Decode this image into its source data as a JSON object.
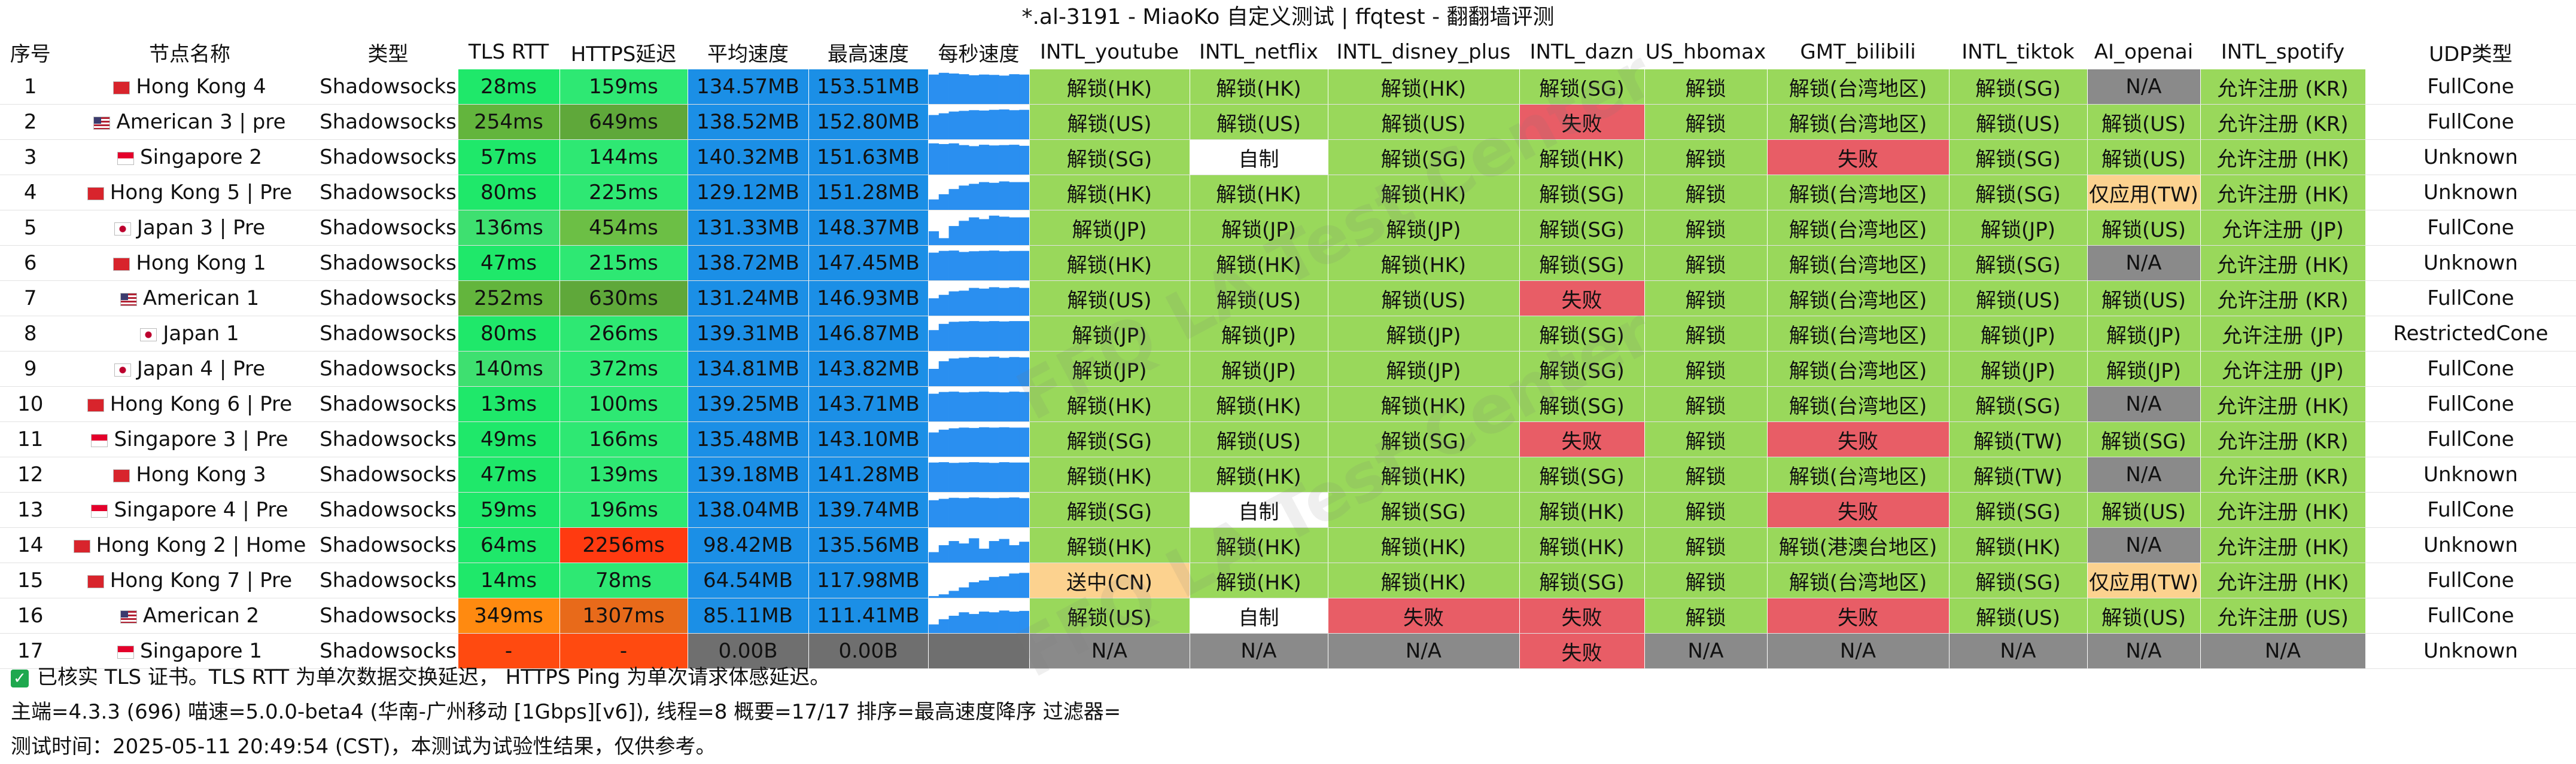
{
  "title": "*.al-3191 - MiaoKo 自定义测试 | ffqtest - 翻翻墙评测",
  "columns": [
    "序号",
    "节点名称",
    "类型",
    "TLS RTT",
    "HTTPS延迟",
    "平均速度",
    "最高速度",
    "每秒速度",
    "INTL_youtube",
    "INTL_netflix",
    "INTL_disney_plus",
    "INTL_dazn",
    "US_hbomax",
    "GMT_bilibili",
    "INTL_tiktok",
    "AI_openai",
    "INTL_spotify",
    "UDP类型"
  ],
  "watermark": "FFQ LA Test Center",
  "rows": [
    {
      "idx": "1",
      "flag": "hk",
      "name": "Hong Kong 4",
      "type": "Shadowsocks",
      "rtt": "28ms",
      "https": "159ms",
      "avg": "134.57MB",
      "max": "153.51MB",
      "youtube": "解锁(HK)",
      "netflix": "解锁(HK)",
      "disney": "解锁(HK)",
      "dazn": "解锁(SG)",
      "hbomax": "解锁",
      "bili": "解锁(台湾地区)",
      "tiktok": "解锁(SG)",
      "openai": "N/A",
      "spotify": "允许注册 (KR)",
      "udp": "FullCone"
    },
    {
      "idx": "2",
      "flag": "us",
      "name": "American 3 | pre",
      "type": "Shadowsocks",
      "rtt": "254ms",
      "https": "649ms",
      "avg": "138.52MB",
      "max": "152.80MB",
      "youtube": "解锁(US)",
      "netflix": "解锁(US)",
      "disney": "解锁(US)",
      "dazn": "失败",
      "hbomax": "解锁",
      "bili": "解锁(台湾地区)",
      "tiktok": "解锁(US)",
      "openai": "解锁(US)",
      "spotify": "允许注册 (KR)",
      "udp": "FullCone"
    },
    {
      "idx": "3",
      "flag": "sg",
      "name": "Singapore 2",
      "type": "Shadowsocks",
      "rtt": "57ms",
      "https": "144ms",
      "avg": "140.32MB",
      "max": "151.63MB",
      "youtube": "解锁(SG)",
      "netflix": "自制",
      "disney": "解锁(SG)",
      "dazn": "解锁(HK)",
      "hbomax": "解锁",
      "bili": "失败",
      "tiktok": "解锁(SG)",
      "openai": "解锁(US)",
      "spotify": "允许注册 (HK)",
      "udp": "Unknown"
    },
    {
      "idx": "4",
      "flag": "hk",
      "name": "Hong Kong 5 | Pre",
      "type": "Shadowsocks",
      "rtt": "80ms",
      "https": "225ms",
      "avg": "129.12MB",
      "max": "151.28MB",
      "youtube": "解锁(HK)",
      "netflix": "解锁(HK)",
      "disney": "解锁(HK)",
      "dazn": "解锁(SG)",
      "hbomax": "解锁",
      "bili": "解锁(台湾地区)",
      "tiktok": "解锁(SG)",
      "openai": "仅应用(TW)",
      "spotify": "允许注册 (HK)",
      "udp": "Unknown"
    },
    {
      "idx": "5",
      "flag": "jp",
      "name": "Japan 3 | Pre",
      "type": "Shadowsocks",
      "rtt": "136ms",
      "https": "454ms",
      "avg": "131.33MB",
      "max": "148.37MB",
      "youtube": "解锁(JP)",
      "netflix": "解锁(JP)",
      "disney": "解锁(JP)",
      "dazn": "解锁(SG)",
      "hbomax": "解锁",
      "bili": "解锁(台湾地区)",
      "tiktok": "解锁(JP)",
      "openai": "解锁(US)",
      "spotify": "允许注册 (JP)",
      "udp": "FullCone"
    },
    {
      "idx": "6",
      "flag": "hk",
      "name": "Hong Kong 1",
      "type": "Shadowsocks",
      "rtt": "47ms",
      "https": "215ms",
      "avg": "138.72MB",
      "max": "147.45MB",
      "youtube": "解锁(HK)",
      "netflix": "解锁(HK)",
      "disney": "解锁(HK)",
      "dazn": "解锁(SG)",
      "hbomax": "解锁",
      "bili": "解锁(台湾地区)",
      "tiktok": "解锁(SG)",
      "openai": "N/A",
      "spotify": "允许注册 (HK)",
      "udp": "Unknown"
    },
    {
      "idx": "7",
      "flag": "us",
      "name": "American 1",
      "type": "Shadowsocks",
      "rtt": "252ms",
      "https": "630ms",
      "avg": "131.24MB",
      "max": "146.93MB",
      "youtube": "解锁(US)",
      "netflix": "解锁(US)",
      "disney": "解锁(US)",
      "dazn": "失败",
      "hbomax": "解锁",
      "bili": "解锁(台湾地区)",
      "tiktok": "解锁(US)",
      "openai": "解锁(US)",
      "spotify": "允许注册 (KR)",
      "udp": "FullCone"
    },
    {
      "idx": "8",
      "flag": "jp",
      "name": "Japan 1",
      "type": "Shadowsocks",
      "rtt": "80ms",
      "https": "266ms",
      "avg": "139.31MB",
      "max": "146.87MB",
      "youtube": "解锁(JP)",
      "netflix": "解锁(JP)",
      "disney": "解锁(JP)",
      "dazn": "解锁(SG)",
      "hbomax": "解锁",
      "bili": "解锁(台湾地区)",
      "tiktok": "解锁(JP)",
      "openai": "解锁(JP)",
      "spotify": "允许注册 (JP)",
      "udp": "RestrictedCone"
    },
    {
      "idx": "9",
      "flag": "jp",
      "name": "Japan 4 | Pre",
      "type": "Shadowsocks",
      "rtt": "140ms",
      "https": "372ms",
      "avg": "134.81MB",
      "max": "143.82MB",
      "youtube": "解锁(JP)",
      "netflix": "解锁(JP)",
      "disney": "解锁(JP)",
      "dazn": "解锁(SG)",
      "hbomax": "解锁",
      "bili": "解锁(台湾地区)",
      "tiktok": "解锁(JP)",
      "openai": "解锁(JP)",
      "spotify": "允许注册 (JP)",
      "udp": "FullCone"
    },
    {
      "idx": "10",
      "flag": "hk",
      "name": "Hong Kong 6 | Pre",
      "type": "Shadowsocks",
      "rtt": "13ms",
      "https": "100ms",
      "avg": "139.25MB",
      "max": "143.71MB",
      "youtube": "解锁(HK)",
      "netflix": "解锁(HK)",
      "disney": "解锁(HK)",
      "dazn": "解锁(SG)",
      "hbomax": "解锁",
      "bili": "解锁(台湾地区)",
      "tiktok": "解锁(SG)",
      "openai": "N/A",
      "spotify": "允许注册 (HK)",
      "udp": "FullCone"
    },
    {
      "idx": "11",
      "flag": "sg",
      "name": "Singapore 3 | Pre",
      "type": "Shadowsocks",
      "rtt": "49ms",
      "https": "166ms",
      "avg": "135.48MB",
      "max": "143.10MB",
      "youtube": "解锁(SG)",
      "netflix": "解锁(US)",
      "disney": "解锁(SG)",
      "dazn": "失败",
      "hbomax": "解锁",
      "bili": "失败",
      "tiktok": "解锁(TW)",
      "openai": "解锁(SG)",
      "spotify": "允许注册 (KR)",
      "udp": "FullCone"
    },
    {
      "idx": "12",
      "flag": "hk",
      "name": "Hong Kong 3",
      "type": "Shadowsocks",
      "rtt": "47ms",
      "https": "139ms",
      "avg": "139.18MB",
      "max": "141.28MB",
      "youtube": "解锁(HK)",
      "netflix": "解锁(HK)",
      "disney": "解锁(HK)",
      "dazn": "解锁(SG)",
      "hbomax": "解锁",
      "bili": "解锁(台湾地区)",
      "tiktok": "解锁(TW)",
      "openai": "N/A",
      "spotify": "允许注册 (KR)",
      "udp": "Unknown"
    },
    {
      "idx": "13",
      "flag": "sg",
      "name": "Singapore 4 | Pre",
      "type": "Shadowsocks",
      "rtt": "59ms",
      "https": "196ms",
      "avg": "138.04MB",
      "max": "139.74MB",
      "youtube": "解锁(SG)",
      "netflix": "自制",
      "disney": "解锁(SG)",
      "dazn": "解锁(HK)",
      "hbomax": "解锁",
      "bili": "失败",
      "tiktok": "解锁(SG)",
      "openai": "解锁(US)",
      "spotify": "允许注册 (HK)",
      "udp": "FullCone"
    },
    {
      "idx": "14",
      "flag": "hk",
      "name": "Hong Kong 2 | Home",
      "type": "Shadowsocks",
      "rtt": "64ms",
      "https": "2256ms",
      "avg": "98.42MB",
      "max": "135.56MB",
      "youtube": "解锁(HK)",
      "netflix": "解锁(HK)",
      "disney": "解锁(HK)",
      "dazn": "解锁(HK)",
      "hbomax": "解锁",
      "bili": "解锁(港澳台地区)",
      "tiktok": "解锁(HK)",
      "openai": "N/A",
      "spotify": "允许注册 (HK)",
      "udp": "Unknown"
    },
    {
      "idx": "15",
      "flag": "hk",
      "name": "Hong Kong 7 | Pre",
      "type": "Shadowsocks",
      "rtt": "14ms",
      "https": "78ms",
      "avg": "64.54MB",
      "max": "117.98MB",
      "youtube": "送中(CN)",
      "netflix": "解锁(HK)",
      "disney": "解锁(HK)",
      "dazn": "解锁(SG)",
      "hbomax": "解锁",
      "bili": "解锁(台湾地区)",
      "tiktok": "解锁(SG)",
      "openai": "仅应用(TW)",
      "spotify": "允许注册 (HK)",
      "udp": "FullCone"
    },
    {
      "idx": "16",
      "flag": "us",
      "name": "American 2",
      "type": "Shadowsocks",
      "rtt": "349ms",
      "https": "1307ms",
      "avg": "85.11MB",
      "max": "111.41MB",
      "youtube": "解锁(US)",
      "netflix": "自制",
      "disney": "失败",
      "dazn": "失败",
      "hbomax": "解锁",
      "bili": "失败",
      "tiktok": "解锁(US)",
      "openai": "解锁(US)",
      "spotify": "允许注册 (US)",
      "udp": "FullCone"
    },
    {
      "idx": "17",
      "flag": "sg",
      "name": "Singapore 1",
      "type": "Shadowsocks",
      "rtt": "-",
      "https": "-",
      "avg": "0.00B",
      "max": "0.00B",
      "youtube": "N/A",
      "netflix": "N/A",
      "disney": "N/A",
      "dazn": "失败",
      "hbomax": "N/A",
      "bili": "N/A",
      "tiktok": "N/A",
      "openai": "N/A",
      "spotify": "N/A",
      "udp": "Unknown"
    }
  ],
  "speed_bars": [
    [
      0.85,
      0.9,
      0.88,
      0.86,
      0.83,
      0.85,
      0.84,
      0.82,
      0.86,
      0.85
    ],
    [
      0.7,
      0.75,
      0.8,
      0.82,
      0.84,
      0.83,
      0.85,
      0.86,
      0.84,
      0.85
    ],
    [
      0.9,
      0.88,
      0.9,
      0.85,
      0.82,
      0.86,
      0.84,
      0.85,
      0.86,
      0.83
    ],
    [
      0.3,
      0.45,
      0.6,
      0.7,
      0.75,
      0.8,
      0.78,
      0.82,
      0.8,
      0.8
    ],
    [
      0.4,
      0.2,
      0.55,
      0.7,
      0.8,
      0.75,
      0.85,
      0.82,
      0.8,
      0.8
    ],
    [
      0.8,
      0.85,
      0.86,
      0.82,
      0.84,
      0.85,
      0.86,
      0.84,
      0.85,
      0.85
    ],
    [
      0.5,
      0.6,
      0.7,
      0.72,
      0.8,
      0.78,
      0.82,
      0.8,
      0.82,
      0.8
    ],
    [
      0.6,
      0.78,
      0.84,
      0.85,
      0.86,
      0.85,
      0.86,
      0.85,
      0.86,
      0.86
    ],
    [
      0.5,
      0.72,
      0.8,
      0.82,
      0.84,
      0.83,
      0.85,
      0.82,
      0.84,
      0.83
    ],
    [
      0.8,
      0.85,
      0.86,
      0.84,
      0.85,
      0.86,
      0.85,
      0.84,
      0.86,
      0.85
    ],
    [
      0.7,
      0.78,
      0.82,
      0.84,
      0.83,
      0.85,
      0.84,
      0.85,
      0.84,
      0.84
    ],
    [
      0.85,
      0.86,
      0.84,
      0.85,
      0.86,
      0.85,
      0.84,
      0.86,
      0.85,
      0.85
    ],
    [
      0.78,
      0.82,
      0.85,
      0.84,
      0.86,
      0.85,
      0.84,
      0.85,
      0.86,
      0.84
    ],
    [
      0.3,
      0.5,
      0.62,
      0.55,
      0.7,
      0.4,
      0.62,
      0.68,
      0.5,
      0.6
    ],
    [
      0.05,
      0.1,
      0.2,
      0.3,
      0.45,
      0.5,
      0.6,
      0.62,
      0.7,
      0.72
    ],
    [
      0.25,
      0.4,
      0.5,
      0.6,
      0.55,
      0.62,
      0.6,
      0.65,
      0.62,
      0.64
    ],
    [
      0,
      0,
      0,
      0,
      0,
      0,
      0,
      0,
      0,
      0
    ]
  ],
  "footer": {
    "note_icon": "check-icon",
    "note": "已核实 TLS 证书。TLS RTT 为单次数据交换延迟， HTTPS Ping 为单次请求体感延迟。",
    "info": "主端=4.3.3 (696) 喵速=5.0.0-beta4 (华南-广州移动 [1Gbps][v6]), 线程=8 概要=17/17 排序=最高速度降序 过滤器=",
    "time": "测试时间：2025-05-11 20:49:54 (CST)，本测试为试验性结果，仅供参考。"
  },
  "colors": {
    "unlock": "#99d85b",
    "fail": "#e85d66",
    "na": "#8a8a8a",
    "white": "#ffffff",
    "partial": "#fcd28f",
    "speed_blue": "#1b8fe6",
    "speed_bar": "#2a8ff0",
    "speed_dark": "#6f6f6f"
  }
}
